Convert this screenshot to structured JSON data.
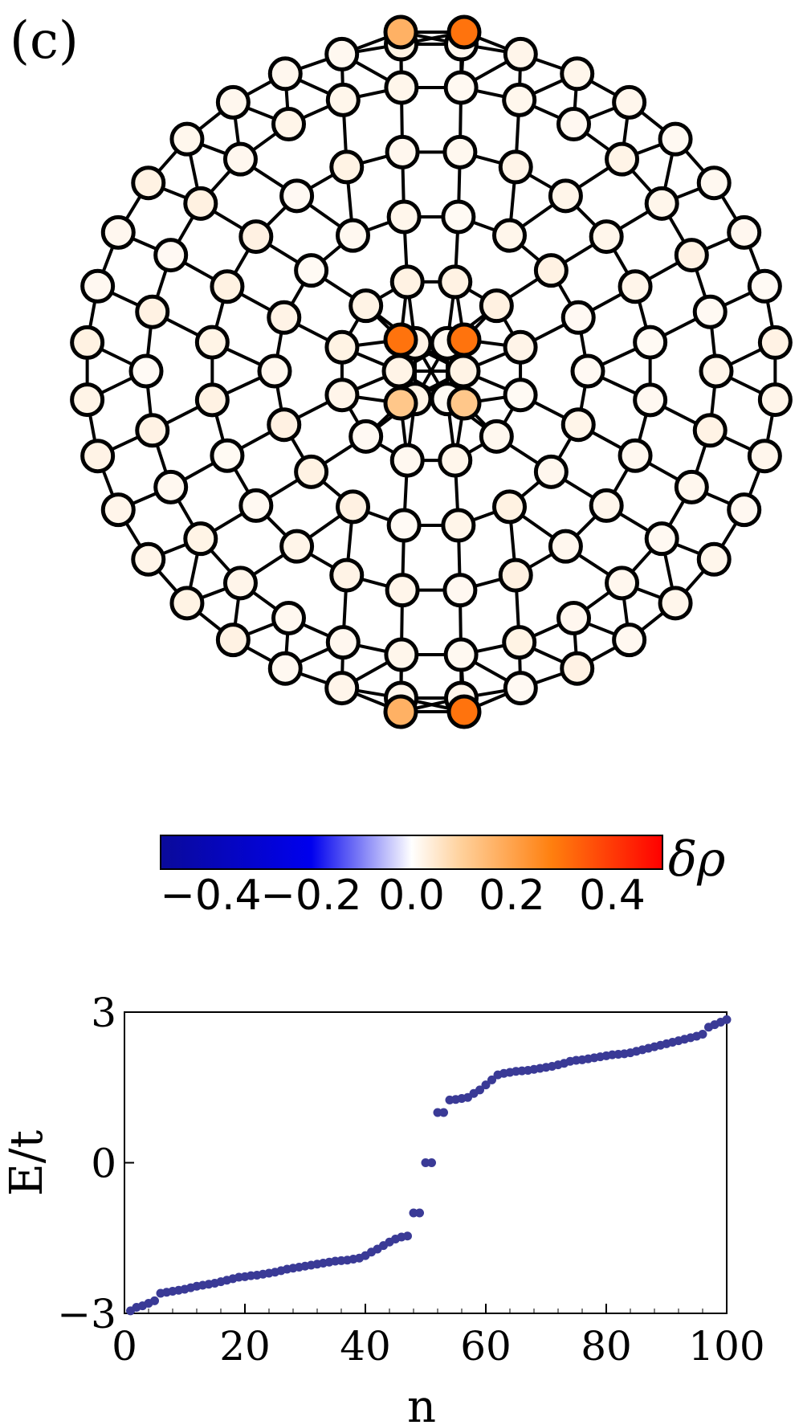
{
  "panel_label": "(c)",
  "colorbar": {
    "title": "δρ",
    "ticks": [
      {
        "value": -0.4,
        "label": "−0.4"
      },
      {
        "value": -0.2,
        "label": "−0.2"
      },
      {
        "value": 0.0,
        "label": "0.0"
      },
      {
        "value": 0.2,
        "label": "0.2"
      },
      {
        "value": 0.4,
        "label": "0.4"
      }
    ],
    "range": [
      -0.5,
      0.5
    ],
    "colors": [
      "#0a0a9a",
      "#0000ee",
      "#ffffff",
      "#ffd09a",
      "#ff7f0e",
      "#ff0000"
    ]
  },
  "lattice": {
    "node_fill_zero": "#ffffff",
    "edge_color": "#000000",
    "highlight_density_top": 0.3,
    "highlight_density_center": 0.3,
    "highlight_density_center_lower": 0.12
  },
  "chart_data": {
    "type": "scatter",
    "xlabel": "n",
    "ylabel": "E/t",
    "xlim": [
      0,
      100
    ],
    "ylim": [
      -3,
      3
    ],
    "xticks": [
      {
        "value": 0,
        "label": "0"
      },
      {
        "value": 20,
        "label": "20"
      },
      {
        "value": 40,
        "label": "40"
      },
      {
        "value": 60,
        "label": "60"
      },
      {
        "value": 80,
        "label": "80"
      },
      {
        "value": 100,
        "label": "100"
      }
    ],
    "yticks": [
      {
        "value": -3,
        "label": "−3"
      },
      {
        "value": 0,
        "label": "0"
      },
      {
        "value": 3,
        "label": "3"
      }
    ],
    "marker_color": "#3a3a96",
    "series": [
      {
        "points": [
          [
            1,
            -2.95
          ],
          [
            2,
            -2.88
          ],
          [
            3,
            -2.85
          ],
          [
            4,
            -2.8
          ],
          [
            5,
            -2.75
          ],
          [
            6,
            -2.6
          ],
          [
            7,
            -2.58
          ],
          [
            8,
            -2.56
          ],
          [
            9,
            -2.54
          ],
          [
            10,
            -2.52
          ],
          [
            11,
            -2.49
          ],
          [
            12,
            -2.46
          ],
          [
            13,
            -2.44
          ],
          [
            14,
            -2.42
          ],
          [
            15,
            -2.4
          ],
          [
            16,
            -2.37
          ],
          [
            17,
            -2.34
          ],
          [
            18,
            -2.31
          ],
          [
            19,
            -2.28
          ],
          [
            20,
            -2.27
          ],
          [
            21,
            -2.25
          ],
          [
            22,
            -2.24
          ],
          [
            23,
            -2.22
          ],
          [
            24,
            -2.2
          ],
          [
            25,
            -2.18
          ],
          [
            26,
            -2.15
          ],
          [
            27,
            -2.12
          ],
          [
            28,
            -2.1
          ],
          [
            29,
            -2.08
          ],
          [
            30,
            -2.06
          ],
          [
            31,
            -2.04
          ],
          [
            32,
            -2.02
          ],
          [
            33,
            -2.0
          ],
          [
            34,
            -1.98
          ],
          [
            35,
            -1.96
          ],
          [
            36,
            -1.95
          ],
          [
            37,
            -1.94
          ],
          [
            38,
            -1.92
          ],
          [
            39,
            -1.9
          ],
          [
            40,
            -1.85
          ],
          [
            41,
            -1.78
          ],
          [
            42,
            -1.72
          ],
          [
            43,
            -1.65
          ],
          [
            44,
            -1.58
          ],
          [
            45,
            -1.52
          ],
          [
            46,
            -1.48
          ],
          [
            47,
            -1.46
          ],
          [
            48,
            -1.0
          ],
          [
            49,
            -1.0
          ],
          [
            50,
            0.0
          ],
          [
            51,
            0.0
          ],
          [
            52,
            1.0
          ],
          [
            53,
            1.0
          ],
          [
            54,
            1.25
          ],
          [
            55,
            1.26
          ],
          [
            56,
            1.28
          ],
          [
            57,
            1.3
          ],
          [
            58,
            1.38
          ],
          [
            59,
            1.45
          ],
          [
            60,
            1.55
          ],
          [
            61,
            1.65
          ],
          [
            62,
            1.75
          ],
          [
            63,
            1.78
          ],
          [
            64,
            1.8
          ],
          [
            65,
            1.82
          ],
          [
            66,
            1.83
          ],
          [
            67,
            1.84
          ],
          [
            68,
            1.86
          ],
          [
            69,
            1.88
          ],
          [
            70,
            1.9
          ],
          [
            71,
            1.92
          ],
          [
            72,
            1.95
          ],
          [
            73,
            1.98
          ],
          [
            74,
            2.02
          ],
          [
            75,
            2.04
          ],
          [
            76,
            2.05
          ],
          [
            77,
            2.07
          ],
          [
            78,
            2.09
          ],
          [
            79,
            2.11
          ],
          [
            80,
            2.13
          ],
          [
            81,
            2.15
          ],
          [
            82,
            2.16
          ],
          [
            83,
            2.17
          ],
          [
            84,
            2.19
          ],
          [
            85,
            2.22
          ],
          [
            86,
            2.25
          ],
          [
            87,
            2.28
          ],
          [
            88,
            2.31
          ],
          [
            89,
            2.34
          ],
          [
            90,
            2.37
          ],
          [
            91,
            2.4
          ],
          [
            92,
            2.43
          ],
          [
            93,
            2.46
          ],
          [
            94,
            2.49
          ],
          [
            95,
            2.52
          ],
          [
            96,
            2.56
          ],
          [
            97,
            2.7
          ],
          [
            98,
            2.75
          ],
          [
            99,
            2.8
          ],
          [
            100,
            2.85
          ]
        ]
      }
    ]
  }
}
